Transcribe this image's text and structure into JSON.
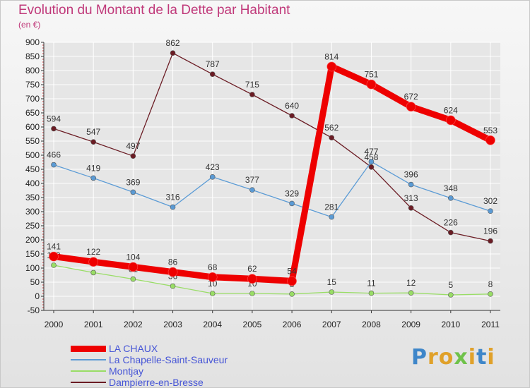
{
  "title": "Evolution du Montant de la Dette par Habitant",
  "unit": "(en €)",
  "brand": "Proxiti",
  "colors": {
    "title": "#c0397a",
    "grid": "#ffffff",
    "axis": "#333333",
    "legend_text": "#4655d6"
  },
  "chart_data": {
    "type": "line",
    "x": [
      2000,
      2001,
      2002,
      2003,
      2004,
      2005,
      2006,
      2007,
      2008,
      2009,
      2010,
      2011
    ],
    "ylim": [
      -50,
      900
    ],
    "yticks": [
      -50,
      0,
      50,
      100,
      150,
      200,
      250,
      300,
      350,
      400,
      450,
      500,
      550,
      600,
      650,
      700,
      750,
      800,
      850,
      900
    ],
    "grid": true,
    "legend_position": "bottom",
    "series": [
      {
        "name": "Dampierre-en-Bresse",
        "color": "#6b1c24",
        "values": [
          594,
          547,
          497,
          862,
          787,
          715,
          640,
          562,
          458,
          313,
          226,
          196
        ]
      },
      {
        "name": "La Chapelle-Saint-Sauveur",
        "color": "#5b9bd5",
        "values": [
          466,
          419,
          369,
          316,
          423,
          377,
          329,
          281,
          477,
          396,
          348,
          302
        ]
      },
      {
        "name": "Montjay",
        "color": "#99dd66",
        "values": [
          110,
          84,
          61,
          36,
          10,
          10,
          8,
          15,
          11,
          12,
          5,
          8
        ]
      },
      {
        "name": "LA CHAUX",
        "color": "#ee0000",
        "values": [
          141,
          122,
          104,
          86,
          68,
          62,
          54,
          814,
          751,
          672,
          624,
          553
        ]
      }
    ],
    "legend_order": [
      "LA CHAUX",
      "La Chapelle-Saint-Sauveur",
      "Montjay",
      "Dampierre-en-Bresse"
    ]
  }
}
